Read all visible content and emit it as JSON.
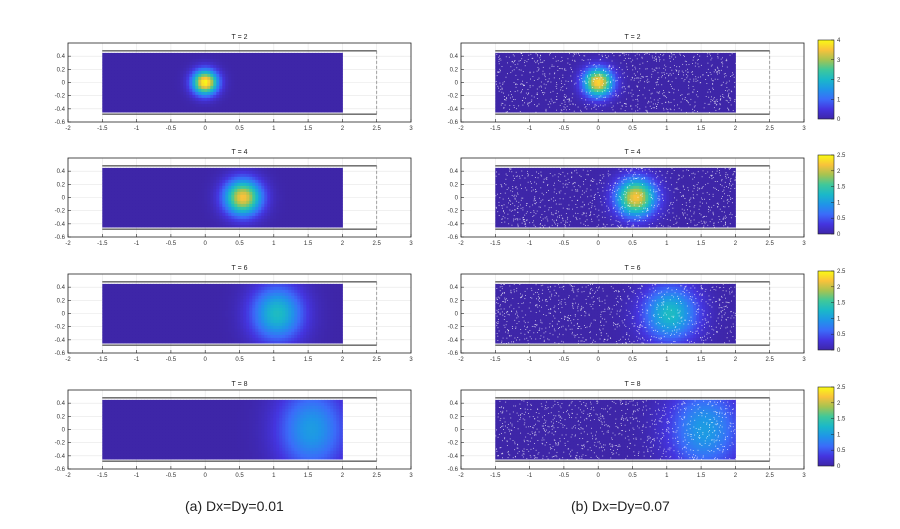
{
  "captions": {
    "left": "(a) Dx=Dy=0.01",
    "right": "(b) Dx=Dy=0.07"
  },
  "colors": {
    "cmap": [
      "#3e26a8",
      "#4435df",
      "#3b6cf9",
      "#1f95e8",
      "#1ab8c9",
      "#3fc89a",
      "#a6c351",
      "#f9c23b",
      "#f9fb14"
    ],
    "channel_line": "#222222",
    "grid": "#e6e6e6",
    "particle": "#ffffff"
  },
  "chart_data": [
    {
      "type": "heatmap",
      "column": "left",
      "title": "T = 2",
      "xticks": [
        "-2",
        "-1.5",
        "-1",
        "-0.5",
        "0",
        "0.5",
        "1",
        "1.5",
        "2",
        "2.5",
        "3"
      ],
      "yticks": [
        "0.4",
        "0.2",
        "0",
        "-0.2",
        "-0.4",
        "-0.6"
      ],
      "xlim": [
        -2,
        3
      ],
      "ylim": [
        -0.6,
        0.6
      ],
      "field_xlim": [
        -1.5,
        2
      ],
      "field_ylim": [
        -0.45,
        0.45
      ],
      "channel_xlim": [
        -1.5,
        2.5
      ],
      "channel_ylim": [
        -0.48,
        0.48
      ],
      "peak": {
        "x": 0.0,
        "y": 0.0,
        "value": 4,
        "sx": 0.13,
        "sy": 0.13
      }
    },
    {
      "type": "heatmap",
      "column": "right",
      "title": "T = 2",
      "particles": true,
      "xticks": [
        "-2",
        "-1.5",
        "-1",
        "-0.5",
        "0",
        "0.5",
        "1",
        "1.5",
        "2",
        "2.5",
        "3"
      ],
      "yticks": [
        "0.4",
        "0.2",
        "0",
        "-0.2",
        "-0.4",
        "-0.6"
      ],
      "xlim": [
        -2,
        3
      ],
      "ylim": [
        -0.6,
        0.6
      ],
      "field_xlim": [
        -1.5,
        2
      ],
      "field_ylim": [
        -0.45,
        0.45
      ],
      "channel_xlim": [
        -1.5,
        2.5
      ],
      "channel_ylim": [
        -0.48,
        0.48
      ],
      "peak": {
        "x": 0.0,
        "y": 0.0,
        "value": 3.7,
        "sx": 0.15,
        "sy": 0.15
      },
      "colorbar": {
        "ticks": [
          "4",
          "3",
          "2",
          "1",
          "0"
        ],
        "min": 0,
        "max": 4
      }
    },
    {
      "type": "heatmap",
      "column": "left",
      "title": "T = 4",
      "xticks": [
        "-2",
        "-1.5",
        "-1",
        "-0.5",
        "0",
        "0.5",
        "1",
        "1.5",
        "2",
        "2.5",
        "3"
      ],
      "yticks": [
        "0.4",
        "0.2",
        "0",
        "-0.2",
        "-0.4",
        "-0.6"
      ],
      "xlim": [
        -2,
        3
      ],
      "ylim": [
        -0.6,
        0.6
      ],
      "field_xlim": [
        -1.5,
        2
      ],
      "field_ylim": [
        -0.45,
        0.45
      ],
      "channel_xlim": [
        -1.5,
        2.5
      ],
      "channel_ylim": [
        -0.48,
        0.48
      ],
      "peak": {
        "x": 0.55,
        "y": 0.0,
        "value": 2.2,
        "sx": 0.19,
        "sy": 0.19
      }
    },
    {
      "type": "heatmap",
      "column": "right",
      "title": "T = 4",
      "particles": true,
      "xticks": [
        "-2",
        "-1.5",
        "-1",
        "-0.5",
        "0",
        "0.5",
        "1",
        "1.5",
        "2",
        "2.5",
        "3"
      ],
      "yticks": [
        "0.4",
        "0.2",
        "0",
        "-0.2",
        "-0.4",
        "-0.6"
      ],
      "xlim": [
        -2,
        3
      ],
      "ylim": [
        -0.6,
        0.6
      ],
      "field_xlim": [
        -1.5,
        2
      ],
      "field_ylim": [
        -0.45,
        0.45
      ],
      "channel_xlim": [
        -1.5,
        2.5
      ],
      "channel_ylim": [
        -0.48,
        0.48
      ],
      "peak": {
        "x": 0.55,
        "y": 0.0,
        "value": 2.2,
        "sx": 0.2,
        "sy": 0.2
      },
      "colorbar": {
        "ticks": [
          "2.5",
          "2",
          "1.5",
          "1",
          "0.5",
          "0"
        ],
        "min": 0,
        "max": 2.5
      }
    },
    {
      "type": "heatmap",
      "column": "left",
      "title": "T = 6",
      "xticks": [
        "-2",
        "-1.5",
        "-1",
        "-0.5",
        "0",
        "0.5",
        "1",
        "1.5",
        "2",
        "2.5",
        "3"
      ],
      "yticks": [
        "0.4",
        "0.2",
        "0",
        "-0.2",
        "-0.4",
        "-0.6"
      ],
      "xlim": [
        -2,
        3
      ],
      "ylim": [
        -0.6,
        0.6
      ],
      "field_xlim": [
        -1.5,
        2
      ],
      "field_ylim": [
        -0.45,
        0.45
      ],
      "channel_xlim": [
        -1.5,
        2.5
      ],
      "channel_ylim": [
        -0.48,
        0.48
      ],
      "peak": {
        "x": 1.05,
        "y": 0.0,
        "value": 1.3,
        "sx": 0.27,
        "sy": 0.3
      }
    },
    {
      "type": "heatmap",
      "column": "right",
      "title": "T = 6",
      "particles": true,
      "xticks": [
        "-2",
        "-1.5",
        "-1",
        "-0.5",
        "0",
        "0.5",
        "1",
        "1.5",
        "2",
        "2.5",
        "3"
      ],
      "yticks": [
        "0.4",
        "0.2",
        "0",
        "-0.2",
        "-0.4",
        "-0.6"
      ],
      "xlim": [
        -2,
        3
      ],
      "ylim": [
        -0.6,
        0.6
      ],
      "field_xlim": [
        -1.5,
        2
      ],
      "field_ylim": [
        -0.45,
        0.45
      ],
      "channel_xlim": [
        -1.5,
        2.5
      ],
      "channel_ylim": [
        -0.48,
        0.48
      ],
      "peak": {
        "x": 1.05,
        "y": 0.0,
        "value": 1.3,
        "sx": 0.28,
        "sy": 0.3
      },
      "colorbar": {
        "ticks": [
          "2.5",
          "2",
          "1.5",
          "1",
          "0.5",
          "0"
        ],
        "min": 0,
        "max": 2.5
      }
    },
    {
      "type": "heatmap",
      "column": "left",
      "title": "T = 8",
      "xticks": [
        "-2",
        "-1.5",
        "-1",
        "-0.5",
        "0",
        "0.5",
        "1",
        "1.5",
        "2",
        "2.5",
        "3"
      ],
      "yticks": [
        "0.4",
        "0.2",
        "0",
        "-0.2",
        "-0.4",
        "-0.6"
      ],
      "xlim": [
        -2,
        3
      ],
      "ylim": [
        -0.6,
        0.6
      ],
      "field_xlim": [
        -1.5,
        2
      ],
      "field_ylim": [
        -0.45,
        0.45
      ],
      "channel_xlim": [
        -1.5,
        2.5
      ],
      "channel_ylim": [
        -0.48,
        0.48
      ],
      "peak": {
        "x": 1.55,
        "y": 0.0,
        "value": 1.0,
        "sx": 0.35,
        "sy": 0.45
      }
    },
    {
      "type": "heatmap",
      "column": "right",
      "title": "T = 8",
      "particles": true,
      "xticks": [
        "-2",
        "-1.5",
        "-1",
        "-0.5",
        "0",
        "0.5",
        "1",
        "1.5",
        "2",
        "2.5",
        "3"
      ],
      "yticks": [
        "0.4",
        "0.2",
        "0",
        "-0.2",
        "-0.4",
        "-0.6"
      ],
      "xlim": [
        -2,
        3
      ],
      "ylim": [
        -0.6,
        0.6
      ],
      "field_xlim": [
        -1.5,
        2
      ],
      "field_ylim": [
        -0.45,
        0.45
      ],
      "channel_xlim": [
        -1.5,
        2.5
      ],
      "channel_ylim": [
        -0.48,
        0.48
      ],
      "peak": {
        "x": 1.55,
        "y": 0.0,
        "value": 1.0,
        "sx": 0.36,
        "sy": 0.45
      },
      "colorbar": {
        "ticks": [
          "2.5",
          "2",
          "1.5",
          "1",
          "0.5",
          "0"
        ],
        "min": 0,
        "max": 2.5
      }
    }
  ]
}
